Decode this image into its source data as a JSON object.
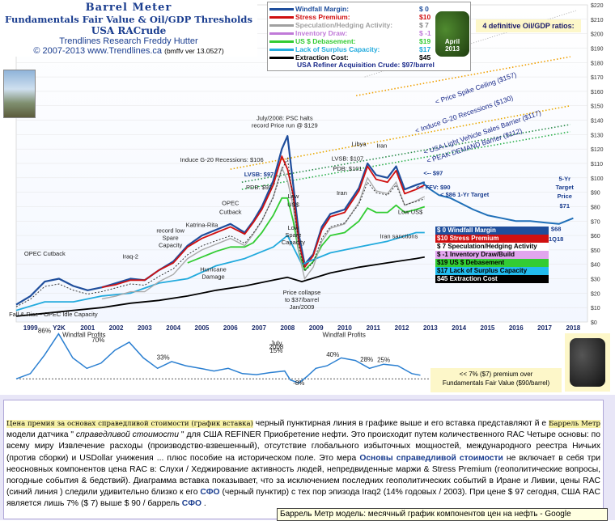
{
  "header": {
    "title": "Barrel Meter",
    "subtitle": "Fundamentals Fair Value & Oil/GDP Thresholds",
    "market": "USA RACrude",
    "credit": "Trendlines Research   Freddy Hutter",
    "copyright": "© 2007-2013  www.Trendlines.ca",
    "version": "(bmffv ver 13.0527)"
  },
  "badge": {
    "line1": "April",
    "line2": "2013"
  },
  "ratios_label": "4 definitive Oil/GDP ratios:",
  "legend_top": [
    {
      "label": "Windfall Margin:",
      "value": "$ 0",
      "color": "#1f4e9c"
    },
    {
      "label": "Stress Premium:",
      "value": "$10",
      "color": "#d01010"
    },
    {
      "label": "Speculation/Hedging Activity:",
      "value": "$ 7",
      "color": "#a0a0a0"
    },
    {
      "label": "Inventory Draw:",
      "value": "$ -1",
      "color": "#c07ad8"
    },
    {
      "label": "US $ Debasement:",
      "value": "$19",
      "color": "#33cc33"
    },
    {
      "label": "Lack of Surplus Capacity:",
      "value": "$17",
      "color": "#22aadd"
    },
    {
      "label": "Extraction Cost:",
      "value": "$45",
      "color": "#000000"
    }
  ],
  "legend_top_footer": "USA Refiner Acquisition Crude: $97/barrel",
  "legend_side": [
    {
      "label": "$ 0  Windfall  Margin",
      "bg": "#1f4e9c",
      "fg": "#ffffff"
    },
    {
      "label": "$10  Stress  Premium",
      "bg": "#d01010",
      "fg": "#ffffff"
    },
    {
      "label": "$ 7  Speculation/Hedging  Activity",
      "bg": "#ffffff",
      "fg": "#000000"
    },
    {
      "label": "$ -1  Inventory  Draw/Build",
      "bg": "#e1a5ee",
      "fg": "#000000"
    },
    {
      "label": "$19  US $ Debasement",
      "bg": "#33cc33",
      "fg": "#000000"
    },
    {
      "label": "$17  Lack of Surplus  Capacity",
      "bg": "#22bbee",
      "fg": "#000000"
    },
    {
      "label": "$45  Extraction  Cost",
      "bg": "#000000",
      "fg": "#ffffff"
    }
  ],
  "chart_data": {
    "type": "line",
    "title": "Barrel Meter",
    "ylim": [
      0,
      220
    ],
    "xlim": [
      1999,
      2019
    ],
    "yticks": [
      0,
      10,
      20,
      30,
      40,
      50,
      60,
      70,
      80,
      90,
      100,
      110,
      120,
      130,
      140,
      150,
      160,
      170,
      180,
      190,
      200,
      210,
      220
    ],
    "xticks": [
      "1999",
      "Y2K",
      "2001",
      "2002",
      "2003",
      "2004",
      "2005",
      "2006",
      "2007",
      "2008",
      "2009",
      "2010",
      "2011",
      "2012",
      "2013",
      "2014",
      "2015",
      "2016",
      "2017",
      "2018"
    ],
    "thresholds": [
      {
        "name": "Price Spike Ceiling ($157)",
        "x": [
          2010.9,
          2018.4
        ],
        "y": [
          157,
          184
        ],
        "color": "#f0a000"
      },
      {
        "name": "Induce G-20 Recessions ($130)",
        "x": [
          2006.5,
          2018.4
        ],
        "y": [
          106,
          150
        ],
        "color": "#e8a800"
      },
      {
        "name": "USA Light Vehicle Sales Barrier ($117)",
        "x": [
          2006.9,
          2018.4
        ],
        "y": [
          97,
          137
        ],
        "color": "#2a8a4a"
      },
      {
        "name": "PEAK DEMAND Barrier ($112)",
        "x": [
          2006.9,
          2018.4
        ],
        "y": [
          92,
          132
        ],
        "color": "#2ab04a"
      }
    ],
    "series": [
      {
        "name": "Windfall Margin",
        "color": "#1f4e9c",
        "x": [
          1999,
          1999.5,
          2000,
          2000.5,
          2001,
          2001.5,
          2002,
          2002.5,
          2003,
          2003.5,
          2004,
          2004.5,
          2005,
          2005.5,
          2006,
          2006.5,
          2007,
          2007.3,
          2007.6,
          2008,
          2008.3,
          2008.5,
          2008.7,
          2008.9,
          2009.1,
          2009.4,
          2009.7,
          2010,
          2010.5,
          2011,
          2011.3,
          2011.6,
          2012,
          2012.3,
          2012.6,
          2013,
          2013.3
        ],
        "y": [
          12,
          18,
          28,
          30,
          25,
          22,
          24,
          27,
          30,
          29,
          36,
          42,
          53,
          60,
          64,
          68,
          62,
          70,
          80,
          98,
          120,
          129,
          95,
          60,
          40,
          47,
          66,
          75,
          78,
          93,
          110,
          102,
          100,
          108,
          92,
          95,
          97
        ]
      },
      {
        "name": "Stress Premium",
        "color": "#d01010",
        "x": [
          2002,
          2002.5,
          2003,
          2003.5,
          2004,
          2004.5,
          2005,
          2005.5,
          2006,
          2006.5,
          2007,
          2007.3,
          2007.6,
          2008,
          2008.3,
          2008.5,
          2008.7,
          2008.9,
          2009.1,
          2009.4,
          2009.7,
          2010,
          2010.5,
          2011,
          2011.3,
          2011.6,
          2012,
          2012.3,
          2012.6,
          2013,
          2013.3
        ],
        "y": [
          24,
          26,
          29,
          29,
          36,
          41,
          52,
          58,
          62,
          66,
          61,
          69,
          78,
          95,
          115,
          106,
          88,
          55,
          38,
          46,
          64,
          73,
          76,
          91,
          108,
          99,
          97,
          105,
          89,
          92,
          95
        ]
      },
      {
        "name": "US $ Debasement",
        "color": "#33cc33",
        "x": [
          2005,
          2005.5,
          2006,
          2006.5,
          2007,
          2007.3,
          2007.6,
          2008,
          2008.3,
          2008.5,
          2008.7,
          2008.9,
          2009.1,
          2009.4,
          2009.7,
          2010,
          2010.5,
          2011,
          2011.3,
          2011.6,
          2012,
          2012.3,
          2012.6,
          2013,
          2013.3
        ],
        "y": [
          41,
          45,
          49,
          52,
          52,
          55,
          62,
          74,
          86,
          86,
          70,
          48,
          36,
          42,
          53,
          60,
          62,
          70,
          79,
          76,
          76,
          81,
          76,
          78,
          80
        ]
      },
      {
        "name": "Lack of Surplus Capacity",
        "color": "#22aadd",
        "x": [
          1999,
          2000,
          2001,
          2002,
          2003,
          2004,
          2005,
          2006,
          2007,
          2008,
          2008.5,
          2009,
          2010,
          2011,
          2012,
          2013,
          2013.3
        ],
        "y": [
          8,
          14,
          14,
          18,
          20,
          27,
          30,
          39,
          44,
          52,
          60,
          40,
          48,
          52,
          56,
          62,
          62
        ]
      },
      {
        "name": "Extraction Cost",
        "color": "#000000",
        "x": [
          1999,
          2000,
          2001,
          2002,
          2003,
          2004,
          2005,
          2006,
          2007,
          2008,
          2008.5,
          2009,
          2010,
          2011,
          2012,
          2013,
          2013.3
        ],
        "y": [
          4,
          6,
          8,
          10,
          13,
          15,
          18,
          22,
          25,
          29,
          31,
          28,
          34,
          38,
          41,
          44,
          45
        ]
      },
      {
        "name": "Forecast",
        "color": "#1f6fb8",
        "x": [
          2013.2,
          2013.5,
          2013.8,
          2014.2,
          2014.6,
          2015,
          2015.5,
          2016,
          2016.5,
          2017,
          2017.5,
          2018,
          2018.5
        ],
        "y": [
          97,
          92,
          88,
          86,
          82,
          78,
          74,
          72,
          70,
          70,
          69,
          68,
          72
        ]
      }
    ],
    "annotations": [
      {
        "text": "July/2008:  PSC halts",
        "x": 2008.4,
        "y": 140
      },
      {
        "text": "record  Price run  @ $129",
        "x": 2008.4,
        "y": 135
      },
      {
        "text": "Induce G-20 Recessions:  $106",
        "x": 2006.2,
        "y": 111
      },
      {
        "text": "LVSB: $97",
        "x": 2007.5,
        "y": 101
      },
      {
        "text": "PDB: $92",
        "x": 2007.5,
        "y": 92
      },
      {
        "text": "LVSB: $107",
        "x": 2010.6,
        "y": 112
      },
      {
        "text": "PDB: $101",
        "x": 2010.6,
        "y": 105
      },
      {
        "text": "Libya",
        "x": 2011.0,
        "y": 122
      },
      {
        "text": "Iran",
        "x": 2011.8,
        "y": 121
      },
      {
        "text": "Iran",
        "x": 2010.4,
        "y": 88
      },
      {
        "text": "<-- $97",
        "x": 2013.6,
        "y": 102
      },
      {
        "text": "<-- FFV: $90",
        "x": 2013.6,
        "y": 92
      },
      {
        "text": "< $86  1-Yr Target",
        "x": 2014.7,
        "y": 87
      },
      {
        "text": "5-Yr",
        "x": 2018.2,
        "y": 98
      },
      {
        "text": "Target",
        "x": 2018.2,
        "y": 92
      },
      {
        "text": "Price",
        "x": 2018.2,
        "y": 86
      },
      {
        "text": "$71",
        "x": 2018.2,
        "y": 79
      },
      {
        "text": "$68",
        "x": 2017.9,
        "y": 63
      },
      {
        "text": "1Q18",
        "x": 2017.9,
        "y": 56
      },
      {
        "text": "OPEC Cutback",
        "x": 2000.0,
        "y": 46
      },
      {
        "text": "Iraq-2",
        "x": 2003.0,
        "y": 44
      },
      {
        "text": "record  low",
        "x": 2004.4,
        "y": 62
      },
      {
        "text": "Spare",
        "x": 2004.4,
        "y": 57
      },
      {
        "text": "Capacity",
        "x": 2004.4,
        "y": 52
      },
      {
        "text": "Katrina-Rita",
        "x": 2005.5,
        "y": 66
      },
      {
        "text": "OPEC",
        "x": 2006.5,
        "y": 81
      },
      {
        "text": "Cutback",
        "x": 2006.5,
        "y": 75
      },
      {
        "text": "Low",
        "x": 2008.7,
        "y": 86
      },
      {
        "text": "US$",
        "x": 2008.7,
        "y": 80
      },
      {
        "text": "Low",
        "x": 2008.7,
        "y": 64
      },
      {
        "text": "Spare",
        "x": 2008.7,
        "y": 59
      },
      {
        "text": "Capacity",
        "x": 2008.7,
        "y": 54
      },
      {
        "text": "Hurricane",
        "x": 2005.9,
        "y": 35
      },
      {
        "text": "Damage",
        "x": 2005.9,
        "y": 30
      },
      {
        "text": "Iran sanctions",
        "x": 2012.4,
        "y": 58
      },
      {
        "text": "Low US$",
        "x": 2012.8,
        "y": 75
      },
      {
        "text": "Price collapse",
        "x": 2009.0,
        "y": 19
      },
      {
        "text": "to $37/barrel",
        "x": 2009.0,
        "y": 14
      },
      {
        "text": "Jan/2009",
        "x": 2009.0,
        "y": 9
      },
      {
        "text": "Fall & Rise - OPEC Idle Capacity",
        "x": 2000.3,
        "y": 4
      }
    ],
    "threshold_labels": [
      {
        "text": "< Price Spike Ceiling ($157)",
        "color": "#1a2a8a"
      },
      {
        "text": "< Induce G-20 Recessions ($130)",
        "color": "#1a2a8a"
      },
      {
        "text": "< USA Light Vehicle Sales Barrier ($117)",
        "color": "#1a2a8a"
      },
      {
        "text": "< PEAK DEMAND Barrier ($112)",
        "color": "#1a2a8a"
      }
    ]
  },
  "mini_chart": {
    "type": "line",
    "x": [
      1999,
      1999.5,
      2000,
      2000.5,
      2001,
      2001.5,
      2002,
      2002.5,
      2003,
      2003.5,
      2004,
      2004.5,
      2005,
      2005.5,
      2006,
      2006.5,
      2007,
      2007.5,
      2008,
      2008.5,
      2008.7,
      2009,
      2009.3,
      2009.6,
      2010,
      2010.5,
      2011,
      2011.5,
      2012,
      2012.5,
      2013,
      2013.3
    ],
    "y": [
      0,
      10,
      45,
      86,
      40,
      20,
      30,
      55,
      70,
      40,
      20,
      33,
      25,
      20,
      15,
      20,
      10,
      8,
      12,
      15,
      -2,
      -8,
      5,
      20,
      25,
      40,
      35,
      20,
      28,
      25,
      10,
      7
    ],
    "ylim": [
      -15,
      90
    ],
    "labels": [
      {
        "text": "86%"
      },
      {
        "text": "Windfall  Profits"
      },
      {
        "text": "70%"
      },
      {
        "text": "33%"
      },
      {
        "text": "July"
      },
      {
        "text": "2008"
      },
      {
        "text": "15%"
      },
      {
        "text": "-8%"
      },
      {
        "text": "Windfall  Profits"
      },
      {
        "text": "40%"
      },
      {
        "text": "28%"
      },
      {
        "text": "25%"
      }
    ],
    "note_line1": "<< 7% ($7) premium over",
    "note_line2": "Fundamentals Fair Value ($90/barrel)"
  },
  "text_panel": {
    "highlight": "Цена премия за основах справедливой стоимости  (график вставка)",
    "p1": " черный пунктирная линия в графике выше и его вставка представляют й е ",
    "p2": "Баррель Метр",
    "p3": " модели датчика \" ",
    "p4": "справедливой стоимости",
    "p5": " \" для США REFINER Приобретение нефти. Это происходит путем количественного RAC Четыре основы: по всему миру Извлечение расходы (производство-взвешенный), отсутствие глобального избыточных мощностей, международного реестра Ничьих (против сборки) и USDollar унижения ... плюс пособие на историческом поле. Это мера ",
    "p6": "Основы справедливой стоимости",
    "p7": " не включает в себя три неосновных компонентов цена RAC в: Слухи / Хеджирование активность людей, непредвиденные маржи & Stress Premium (геополитические вопросы, погодные события & бедствий). Диаграмма вставка показывает, что за исключением последних геополитических событий в Иране и Ливии, цены RAC (синий линия ) следили удивительно близко к его ",
    "p8": "СФО",
    "p9": " (черный пунктир) с тех пор эпизода Iraq2 (14% годовых / 2003). При цене $ 97 сегодня, США RAC является лишь 7% ($ 7) выше $ 90 / баррель ",
    "p10": "СФО",
    "p11": " ."
  },
  "tooltip": "Баррель Метр модель: месячный график компонентов цен на нефть - Google"
}
